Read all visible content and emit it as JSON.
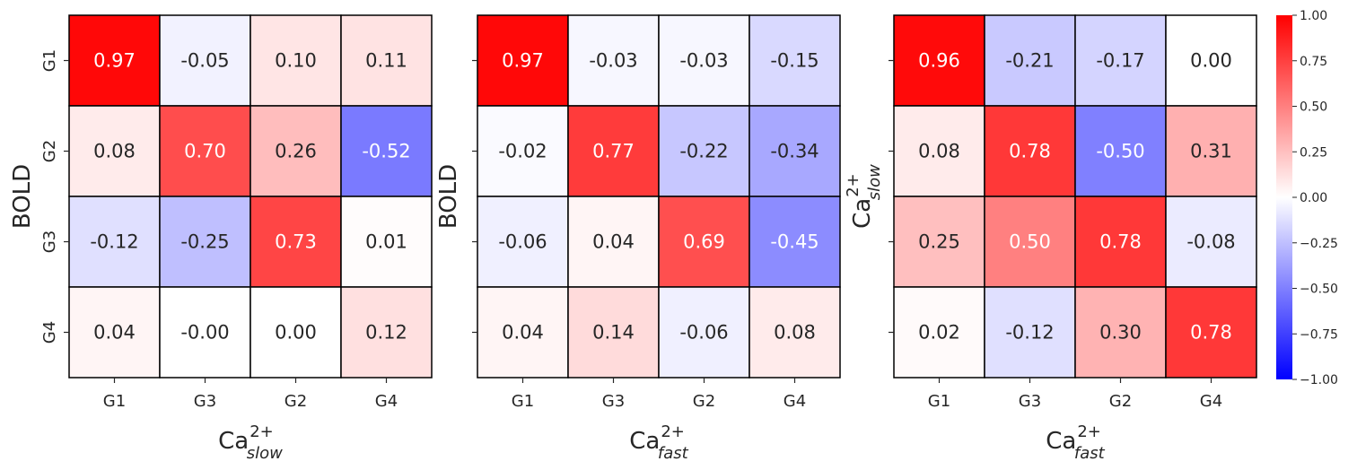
{
  "chart_data": [
    {
      "type": "heatmap",
      "title": "",
      "ylabel": "BOLD",
      "xlabel": {
        "base": "Ca",
        "sup": "2+",
        "sub": "slow"
      },
      "rows": [
        "G1",
        "G2",
        "G3",
        "G4"
      ],
      "cols": [
        "G1",
        "G3",
        "G2",
        "G4"
      ],
      "values": [
        [
          0.97,
          -0.05,
          0.1,
          0.11
        ],
        [
          0.08,
          0.7,
          0.26,
          -0.52
        ],
        [
          -0.12,
          -0.25,
          0.73,
          0.01
        ],
        [
          0.04,
          -0.0,
          0.0,
          0.12
        ]
      ],
      "labels": [
        [
          "0.97",
          "-0.05",
          "0.10",
          "0.11"
        ],
        [
          "0.08",
          "0.70",
          "0.26",
          "-0.52"
        ],
        [
          "-0.12",
          "-0.25",
          "0.73",
          "0.01"
        ],
        [
          "0.04",
          "-0.00",
          "0.00",
          "0.12"
        ]
      ],
      "show_ytick_labels": true
    },
    {
      "type": "heatmap",
      "title": "",
      "ylabel": "BOLD",
      "xlabel": {
        "base": "Ca",
        "sup": "2+",
        "sub": "fast"
      },
      "rows": [
        "G1",
        "G2",
        "G3",
        "G4"
      ],
      "cols": [
        "G1",
        "G3",
        "G2",
        "G4"
      ],
      "values": [
        [
          0.97,
          -0.03,
          -0.03,
          -0.15
        ],
        [
          -0.02,
          0.77,
          -0.22,
          -0.34
        ],
        [
          -0.06,
          0.04,
          0.69,
          -0.45
        ],
        [
          0.04,
          0.14,
          -0.06,
          0.08
        ]
      ],
      "labels": [
        [
          "0.97",
          "-0.03",
          "-0.03",
          "-0.15"
        ],
        [
          "-0.02",
          "0.77",
          "-0.22",
          "-0.34"
        ],
        [
          "-0.06",
          "0.04",
          "0.69",
          "-0.45"
        ],
        [
          "0.04",
          "0.14",
          "-0.06",
          "0.08"
        ]
      ],
      "show_ytick_labels": false
    },
    {
      "type": "heatmap",
      "title": "",
      "ylabel": {
        "base": "Ca",
        "sup": "2+",
        "sub": "slow"
      },
      "xlabel": {
        "base": "Ca",
        "sup": "2+",
        "sub": "fast"
      },
      "rows": [
        "G1",
        "G2",
        "G3",
        "G4"
      ],
      "cols": [
        "G1",
        "G3",
        "G2",
        "G4"
      ],
      "values": [
        [
          0.96,
          -0.21,
          -0.17,
          0.0
        ],
        [
          0.08,
          0.78,
          -0.5,
          0.31
        ],
        [
          0.25,
          0.5,
          0.78,
          -0.08
        ],
        [
          0.02,
          -0.12,
          0.3,
          0.78
        ]
      ],
      "labels": [
        [
          "0.96",
          "-0.21",
          "-0.17",
          "0.00"
        ],
        [
          "0.08",
          "0.78",
          "-0.50",
          "0.31"
        ],
        [
          "0.25",
          "0.50",
          "0.78",
          "-0.08"
        ],
        [
          "0.02",
          "-0.12",
          "0.30",
          "0.78"
        ]
      ],
      "show_ytick_labels": false
    }
  ],
  "colorbar": {
    "colormap": "bwr",
    "min": -1.0,
    "max": 1.0,
    "ticks": [
      1.0,
      0.75,
      0.5,
      0.25,
      0.0,
      -0.25,
      -0.5,
      -0.75,
      -1.0
    ],
    "tick_labels": [
      "1.00",
      "0.75",
      "0.50",
      "0.25",
      "0.00",
      "−0.25",
      "−0.50",
      "−0.75",
      "−1.00"
    ]
  },
  "colors": {
    "low": "#0000ff",
    "mid": "#ffffff",
    "high": "#ff0000",
    "cell_border": "#000000",
    "text_dark": "#262626",
    "text_light": "#ffffff"
  }
}
